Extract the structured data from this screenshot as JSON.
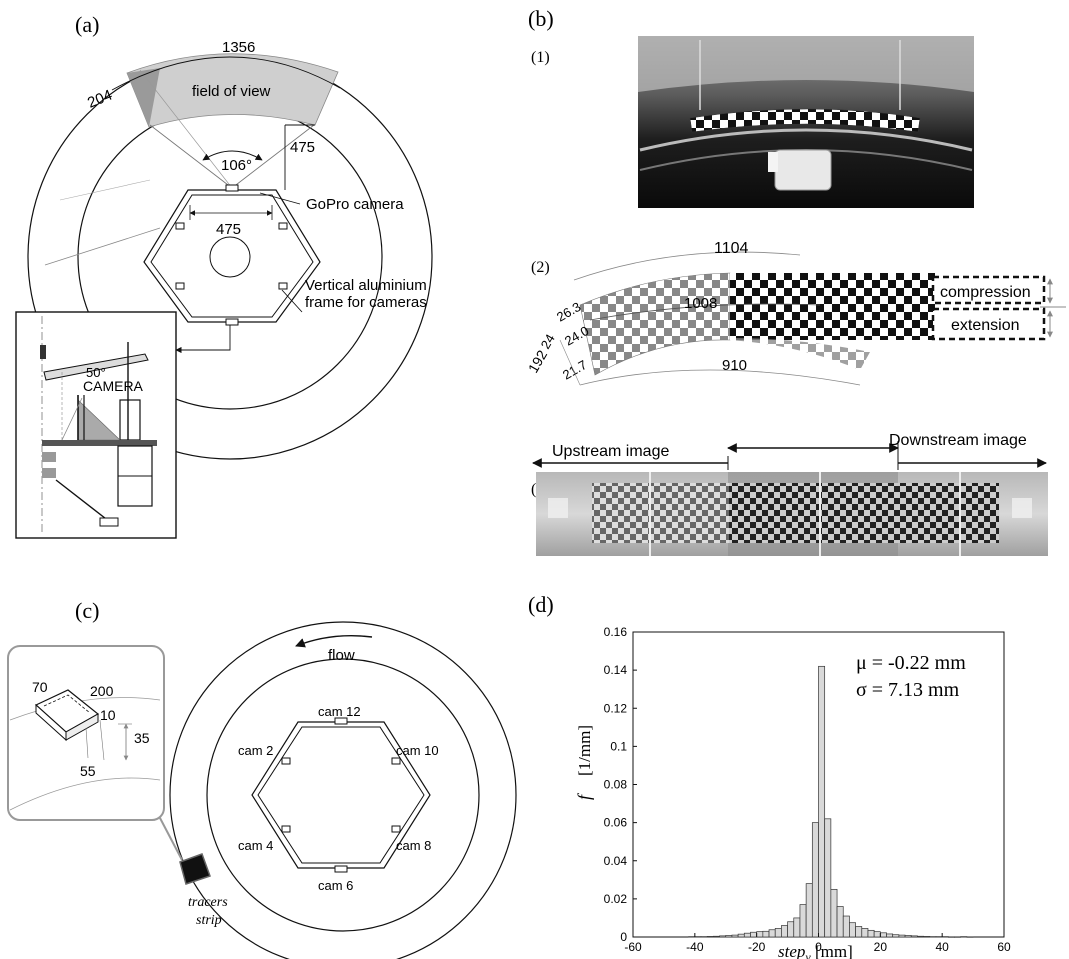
{
  "panels": {
    "a": {
      "letter": "(a)",
      "arc_length": "1356",
      "edge_offset": "204",
      "fov_label": "field of view",
      "angle": "106°",
      "radial_dim": "475",
      "hex_side": "475",
      "camera_label": "GoPro camera",
      "frame_label_1": "Vertical aluminium",
      "frame_label_2": "frame for cameras",
      "inset_angle": "50°",
      "inset_camera": "CAMERA"
    },
    "b": {
      "letter": "(b)",
      "sub1": "(1)",
      "sub2": "(2)",
      "sub3": "(3)",
      "outer_arc": "1104",
      "mid_arc": "1008",
      "inner_arc": "910",
      "width_total": "192",
      "w1": "26.3",
      "w2": "24.0",
      "w3": "24",
      "w4": "21.7",
      "compression": "compression",
      "extension": "extension",
      "upstream": "Upstream image",
      "downstream": "Downstream image"
    },
    "c": {
      "letter": "(c)",
      "flow": "flow",
      "cams": [
        "cam 12",
        "cam 2",
        "cam 10",
        "cam 4",
        "cam 8",
        "cam 6"
      ],
      "strip_1": "tracers",
      "strip_2": "strip",
      "dim_70": "70",
      "dim_200": "200",
      "dim_10": "10",
      "dim_35": "35",
      "dim_55": "55"
    },
    "d": {
      "letter": "(d)",
      "mu": "μ = -0.22 mm",
      "sigma": "σ = 7.13 mm",
      "ylabel_f": "f",
      "ylabel_unit": "[1/mm]",
      "xlabel_main": "step",
      "xlabel_sub": "v",
      "xlabel_unit": " [mm]"
    }
  },
  "chart_data": {
    "type": "bar",
    "title": "",
    "xlabel": "step_v [mm]",
    "ylabel": "f [1/mm]",
    "xlim": [
      -60,
      60
    ],
    "ylim": [
      0,
      0.16
    ],
    "xticks": [
      -60,
      -40,
      -20,
      0,
      20,
      40,
      60
    ],
    "yticks": [
      0,
      0.02,
      0.04,
      0.06,
      0.08,
      0.1,
      0.12,
      0.14,
      0.16
    ],
    "bin_width": 2,
    "bin_starts": [
      -42,
      -40,
      -38,
      -36,
      -34,
      -32,
      -30,
      -28,
      -26,
      -24,
      -22,
      -20,
      -18,
      -16,
      -14,
      -12,
      -10,
      -8,
      -6,
      -4,
      -2,
      0,
      2,
      4,
      6,
      8,
      10,
      12,
      14,
      16,
      18,
      20,
      22,
      24,
      26,
      28,
      30,
      32,
      34,
      36,
      38,
      40,
      42,
      44,
      46,
      48
    ],
    "values": [
      0.0002,
      0.0002,
      0.0002,
      0.0003,
      0.0004,
      0.0006,
      0.0008,
      0.001,
      0.0015,
      0.002,
      0.0025,
      0.0028,
      0.003,
      0.0038,
      0.0045,
      0.006,
      0.008,
      0.01,
      0.017,
      0.028,
      0.06,
      0.142,
      0.062,
      0.025,
      0.016,
      0.011,
      0.0075,
      0.0055,
      0.0045,
      0.0035,
      0.0028,
      0.0022,
      0.0016,
      0.0012,
      0.001,
      0.0008,
      0.0006,
      0.0004,
      0.0003,
      0.0002,
      0.0002,
      0.0002,
      0.0001,
      0.0001,
      0.0002,
      0.0001
    ],
    "annotations": [
      "μ = -0.22 mm",
      "σ = 7.13 mm"
    ],
    "grid": false
  }
}
